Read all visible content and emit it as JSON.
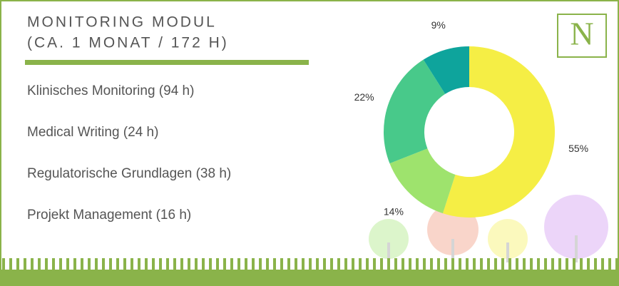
{
  "chart_data": {
    "type": "donut",
    "title": "MONITORING MODUL",
    "subtitle": "(CA. 1 MONAT / 172 H)",
    "logo": "N",
    "categories": [
      "Klinisches Monitoring (94 h)",
      "Medical Writing (24 h)",
      "Regulatorische Grundlagen (38 h)",
      "Projekt Management (16 h)"
    ],
    "values": [
      55,
      14,
      22,
      9
    ],
    "value_labels": [
      "55%",
      "14%",
      "22%",
      "9%"
    ],
    "colors": [
      "#f5ee45",
      "#9ee36d",
      "#48c98a",
      "#0ea49c"
    ]
  }
}
